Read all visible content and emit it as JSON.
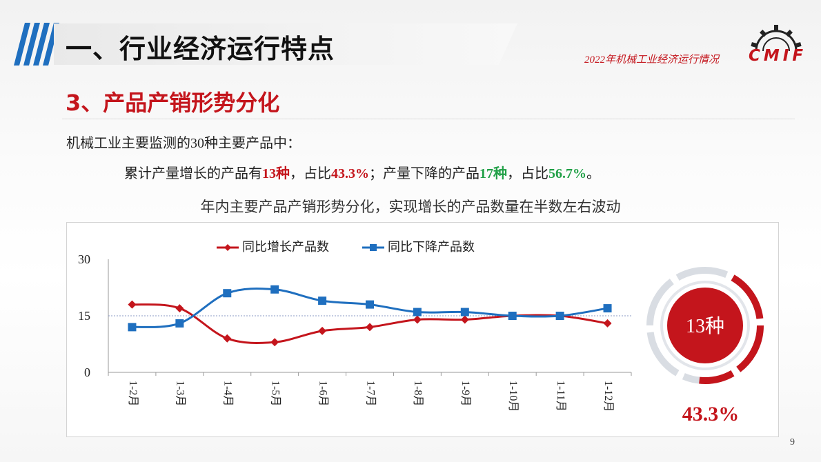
{
  "header": {
    "title": "一、行业经济运行特点",
    "subtitle": "2022年机械工业经济运行情况",
    "logo_text": "CMIF"
  },
  "section": {
    "title": "3、产品产销形势分化"
  },
  "intro": "机械工业主要监测的30种主要产品中：",
  "stats": {
    "part1": "累计产量增长的产品有",
    "grow_count": "13种",
    "part2": "，占比",
    "grow_pct": "43.3%",
    "part3": "；产量下降的产品",
    "decline_count": "17种",
    "part4": "，占比",
    "decline_pct": "56.7%",
    "part5": "。"
  },
  "chart_title": "年内主要产品产销形势分化，实现增长的产品数量在半数左右波动",
  "chart_data": {
    "type": "line",
    "categories": [
      "1-2月",
      "1-3月",
      "1-4月",
      "1-5月",
      "1-6月",
      "1-7月",
      "1-8月",
      "1-9月",
      "1-10月",
      "1-11月",
      "1-12月"
    ],
    "series": [
      {
        "name": "同比增长产品数",
        "color": "#c4151c",
        "values": [
          18,
          17,
          9,
          8,
          11,
          12,
          14,
          14,
          15,
          15,
          13
        ]
      },
      {
        "name": "同比下降产品数",
        "color": "#1f6fbf",
        "values": [
          12,
          13,
          21,
          22,
          19,
          18,
          16,
          16,
          15,
          15,
          17
        ]
      }
    ],
    "yticks": [
      "0",
      "15",
      "30"
    ],
    "ylim": [
      0,
      30
    ],
    "reference_line": 15
  },
  "ring": {
    "center_label": "13种",
    "percent_label": "43.3%",
    "fraction": 0.433,
    "color_on": "#c4151c",
    "color_off": "#d9dde3"
  },
  "page_number": "9"
}
